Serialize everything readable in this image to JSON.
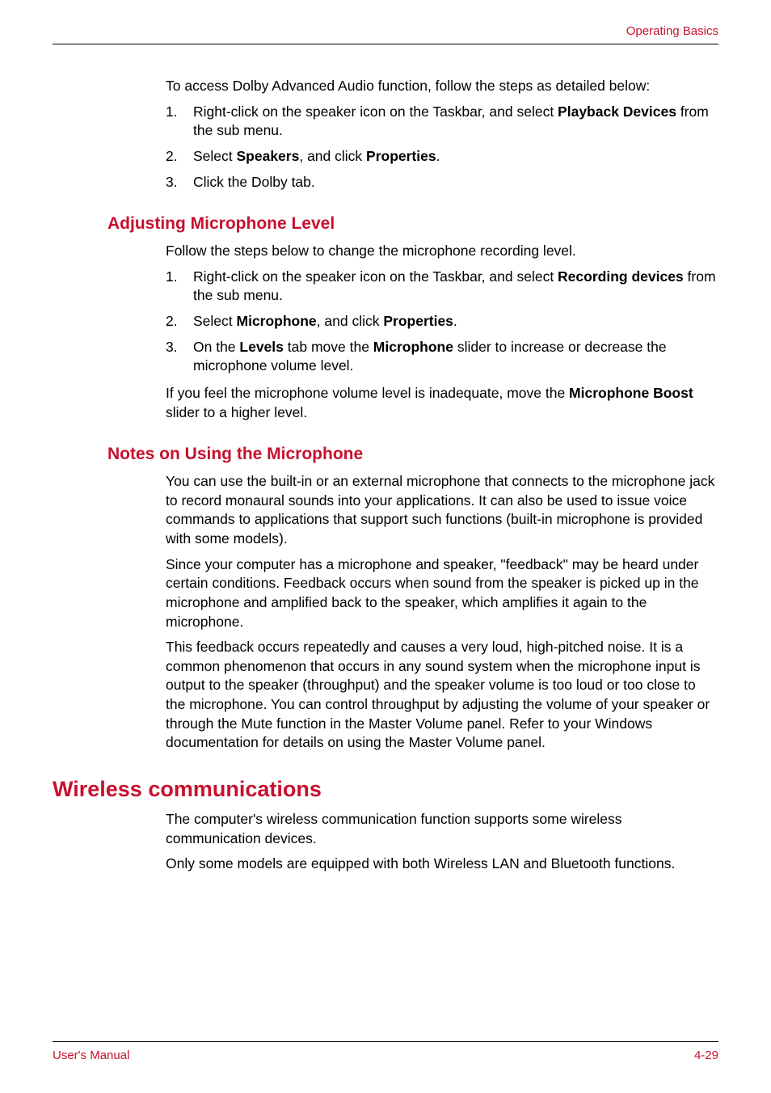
{
  "header": {
    "section": "Operating Basics"
  },
  "intro": {
    "p1": "To access Dolby Advanced Audio function, follow the steps as detailed below:",
    "list": {
      "i1_num": "1.",
      "i1_a": "Right-click on the speaker icon on the Taskbar, and select ",
      "i1_b": "Playback Devices",
      "i1_c": " from the sub menu.",
      "i2_num": "2.",
      "i2_a": "Select ",
      "i2_b": "Speakers",
      "i2_c": ", and click ",
      "i2_d": "Properties",
      "i2_e": ".",
      "i3_num": "3.",
      "i3_a": "Click the Dolby tab."
    }
  },
  "sec_mic_level": {
    "title": "Adjusting Microphone Level",
    "p1": "Follow the steps below to change the microphone recording level.",
    "list": {
      "i1_num": "1.",
      "i1_a": "Right-click on the speaker icon on the Taskbar, and select ",
      "i1_b": "Recording devices",
      "i1_c": " from the sub menu.",
      "i2_num": "2.",
      "i2_a": "Select ",
      "i2_b": "Microphone",
      "i2_c": ", and click ",
      "i2_d": "Properties",
      "i2_e": ".",
      "i3_num": "3.",
      "i3_a": "On the ",
      "i3_b": "Levels",
      "i3_c": " tab move the ",
      "i3_d": "Microphone",
      "i3_e": " slider to increase or decrease the microphone volume level."
    },
    "p2_a": "If you feel the microphone volume level is inadequate, move the ",
    "p2_b": "Microphone Boost",
    "p2_c": " slider to a higher level."
  },
  "sec_mic_notes": {
    "title": "Notes on Using the Microphone",
    "p1": "You can use the built-in or an external microphone that connects to the microphone jack to record monaural sounds into your applications. It can also be used to issue voice commands to applications that support such functions (built-in microphone is provided with some models).",
    "p2": "Since your computer has a microphone and speaker, \"feedback\" may be heard under certain conditions. Feedback occurs when sound from the speaker is picked up in the microphone and amplified back to the speaker, which amplifies it again to the microphone.",
    "p3": "This feedback occurs repeatedly and causes a very loud, high-pitched noise. It is a common phenomenon that occurs in any sound system when the microphone input is output to the speaker (throughput) and the speaker volume is too loud or too close to the microphone. You can control throughput by adjusting the volume of your speaker or through the Mute function in the Master Volume panel. Refer to your Windows documentation for details on using the Master Volume panel."
  },
  "sec_wireless": {
    "title": "Wireless communications",
    "p1": "The computer's wireless communication function supports some wireless communication devices.",
    "p2": "Only some models are equipped with both Wireless LAN and Bluetooth functions."
  },
  "footer": {
    "left": "User's Manual",
    "right": "4-29"
  },
  "colors": {
    "accent": "#c8102e",
    "text": "#000000",
    "rule": "#000000",
    "background": "#ffffff"
  },
  "typography": {
    "body_fontsize_pt": 13,
    "h2_fontsize_pt": 16,
    "h1_fontsize_pt": 20,
    "header_fontsize_pt": 11,
    "footer_fontsize_pt": 11,
    "font_family": "Arial"
  }
}
